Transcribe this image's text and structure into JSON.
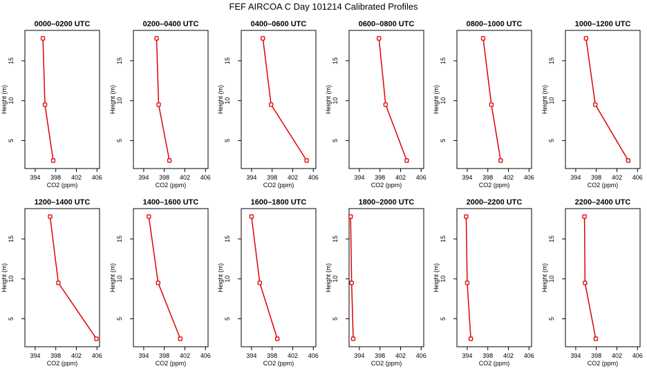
{
  "title": "FEF AIRCOA C  Day 101214  Calibrated Profiles",
  "style": {
    "line_color": "#dd0000",
    "point_color": "#dd0000",
    "frame_color": "#000000"
  },
  "chart_data": [
    {
      "type": "line",
      "title": "0000–0200 UTC",
      "xlabel": "CO2 (ppm)",
      "ylabel": "Height (m)",
      "xlim": [
        392,
        406.5
      ],
      "ylim": [
        1.5,
        18.8
      ],
      "xticks": [
        394,
        398,
        402,
        406
      ],
      "yticks": [
        5,
        10,
        15
      ],
      "series": [
        {
          "x": [
            395.5,
            395.9,
            397.5
          ],
          "y": [
            17.8,
            9.5,
            2.5
          ]
        }
      ]
    },
    {
      "type": "line",
      "title": "0200–0400 UTC",
      "xlabel": "CO2 (ppm)",
      "ylabel": "Height (m)",
      "xlim": [
        392,
        406.5
      ],
      "ylim": [
        1.5,
        18.8
      ],
      "xticks": [
        394,
        398,
        402,
        406
      ],
      "yticks": [
        5,
        10,
        15
      ],
      "series": [
        {
          "x": [
            396.5,
            396.9,
            399.0
          ],
          "y": [
            17.8,
            9.5,
            2.5
          ]
        }
      ]
    },
    {
      "type": "line",
      "title": "0400–0600 UTC",
      "xlabel": "CO2 (ppm)",
      "ylabel": "Height (m)",
      "xlim": [
        392,
        406.5
      ],
      "ylim": [
        1.5,
        18.8
      ],
      "xticks": [
        394,
        398,
        402,
        406
      ],
      "yticks": [
        5,
        10,
        15
      ],
      "series": [
        {
          "x": [
            396.2,
            397.8,
            404.7
          ],
          "y": [
            17.8,
            9.5,
            2.5
          ]
        }
      ]
    },
    {
      "type": "line",
      "title": "0600–0800 UTC",
      "xlabel": "CO2 (ppm)",
      "ylabel": "Height (m)",
      "xlim": [
        392,
        406.5
      ],
      "ylim": [
        1.5,
        18.8
      ],
      "xticks": [
        394,
        398,
        402,
        406
      ],
      "yticks": [
        5,
        10,
        15
      ],
      "series": [
        {
          "x": [
            397.8,
            399.1,
            403.2
          ],
          "y": [
            17.8,
            9.5,
            2.5
          ]
        }
      ]
    },
    {
      "type": "line",
      "title": "0800–1000 UTC",
      "xlabel": "CO2 (ppm)",
      "ylabel": "Height (m)",
      "xlim": [
        392,
        406.5
      ],
      "ylim": [
        1.5,
        18.8
      ],
      "xticks": [
        394,
        398,
        402,
        406
      ],
      "yticks": [
        5,
        10,
        15
      ],
      "series": [
        {
          "x": [
            397.1,
            398.7,
            400.5
          ],
          "y": [
            17.8,
            9.5,
            2.5
          ]
        }
      ]
    },
    {
      "type": "line",
      "title": "1000–1200 UTC",
      "xlabel": "CO2 (ppm)",
      "ylabel": "Height (m)",
      "xlim": [
        392,
        406.5
      ],
      "ylim": [
        1.5,
        18.8
      ],
      "xticks": [
        394,
        398,
        402,
        406
      ],
      "yticks": [
        5,
        10,
        15
      ],
      "series": [
        {
          "x": [
            396.0,
            397.8,
            404.2
          ],
          "y": [
            17.8,
            9.5,
            2.5
          ]
        }
      ]
    },
    {
      "type": "line",
      "title": "1200–1400 UTC",
      "xlabel": "CO2 (ppm)",
      "ylabel": "Height (m)",
      "xlim": [
        392,
        406.5
      ],
      "ylim": [
        1.5,
        18.8
      ],
      "xticks": [
        394,
        398,
        402,
        406
      ],
      "yticks": [
        5,
        10,
        15
      ],
      "series": [
        {
          "x": [
            396.9,
            398.5,
            405.9
          ],
          "y": [
            17.8,
            9.5,
            2.5
          ]
        }
      ]
    },
    {
      "type": "line",
      "title": "1400–1600 UTC",
      "xlabel": "CO2 (ppm)",
      "ylabel": "Height (m)",
      "xlim": [
        392,
        406.5
      ],
      "ylim": [
        1.5,
        18.8
      ],
      "xticks": [
        394,
        398,
        402,
        406
      ],
      "yticks": [
        5,
        10,
        15
      ],
      "series": [
        {
          "x": [
            395.0,
            396.8,
            401.1
          ],
          "y": [
            17.8,
            9.5,
            2.5
          ]
        }
      ]
    },
    {
      "type": "line",
      "title": "1600–1800 UTC",
      "xlabel": "CO2 (ppm)",
      "ylabel": "Height (m)",
      "xlim": [
        392,
        406.5
      ],
      "ylim": [
        1.5,
        18.8
      ],
      "xticks": [
        394,
        398,
        402,
        406
      ],
      "yticks": [
        5,
        10,
        15
      ],
      "series": [
        {
          "x": [
            394.0,
            395.6,
            399.0
          ],
          "y": [
            17.8,
            9.5,
            2.5
          ]
        }
      ]
    },
    {
      "type": "line",
      "title": "1800–2000 UTC",
      "xlabel": "CO2 (ppm)",
      "ylabel": "Height (m)",
      "xlim": [
        392,
        406.5
      ],
      "ylim": [
        1.5,
        18.8
      ],
      "xticks": [
        394,
        398,
        402,
        406
      ],
      "yticks": [
        5,
        10,
        15
      ],
      "series": [
        {
          "x": [
            392.3,
            392.5,
            392.8
          ],
          "y": [
            17.8,
            9.5,
            2.5
          ]
        }
      ]
    },
    {
      "type": "line",
      "title": "2000–2200 UTC",
      "xlabel": "CO2 (ppm)",
      "ylabel": "Height (m)",
      "xlim": [
        392,
        406.5
      ],
      "ylim": [
        1.5,
        18.8
      ],
      "xticks": [
        394,
        398,
        402,
        406
      ],
      "yticks": [
        5,
        10,
        15
      ],
      "series": [
        {
          "x": [
            393.8,
            394.0,
            394.7
          ],
          "y": [
            17.8,
            9.5,
            2.5
          ]
        }
      ]
    },
    {
      "type": "line",
      "title": "2200–2400 UTC",
      "xlabel": "CO2 (ppm)",
      "ylabel": "Height (m)",
      "xlim": [
        392,
        406.5
      ],
      "ylim": [
        1.5,
        18.8
      ],
      "xticks": [
        394,
        398,
        402,
        406
      ],
      "yticks": [
        5,
        10,
        15
      ],
      "series": [
        {
          "x": [
            395.7,
            395.8,
            397.9
          ],
          "y": [
            17.8,
            9.5,
            2.5
          ]
        }
      ]
    }
  ]
}
